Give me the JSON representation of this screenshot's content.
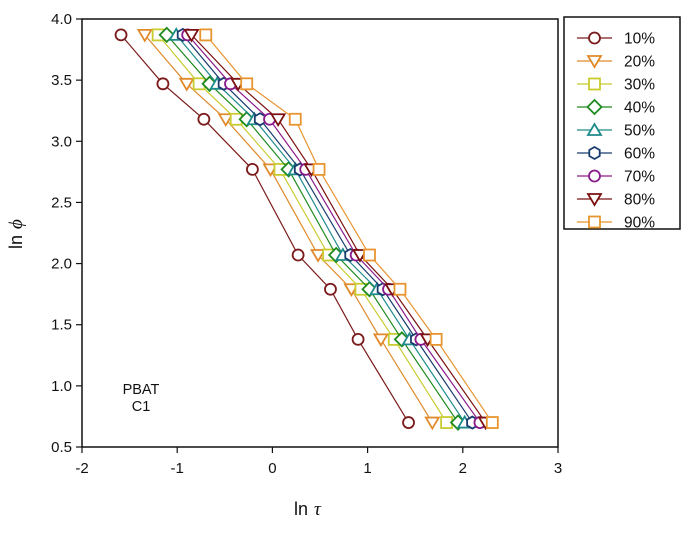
{
  "chart_data": {
    "type": "line",
    "title": "",
    "xlabel": "ln τ",
    "xlabel_parts": {
      "prefix": "ln",
      "symbol": "τ"
    },
    "ylabel": "ln ϕ",
    "ylabel_parts": {
      "prefix": "ln",
      "symbol": "ϕ"
    },
    "xlim": [
      -2,
      3
    ],
    "ylim": [
      0.5,
      4.0
    ],
    "xticks": [
      -2,
      -1,
      0,
      1,
      2,
      3
    ],
    "xtick_labels": [
      "-2",
      "-1",
      "0",
      "1",
      "2",
      "3"
    ],
    "yticks": [
      0.5,
      1.0,
      1.5,
      2.0,
      2.5,
      3.0,
      3.5,
      4.0
    ],
    "ytick_labels": [
      "0.5",
      "1.0",
      "1.5",
      "2.0",
      "2.5",
      "3.0",
      "3.5",
      "4.0"
    ],
    "grid": false,
    "legend_position": "outside-right-top",
    "annotation": [
      "PBAT",
      "C1"
    ],
    "y": [
      3.87,
      3.47,
      3.18,
      2.77,
      2.07,
      1.79,
      1.38,
      0.7
    ],
    "series": [
      {
        "name": "10%",
        "color": "#7B1A1A",
        "marker": "circle",
        "x": [
          -1.59,
          -1.15,
          -0.72,
          -0.21,
          0.27,
          0.61,
          0.9,
          1.43
        ]
      },
      {
        "name": "20%",
        "color": "#E08A2A",
        "marker": "triangle-down",
        "x": [
          -1.34,
          -0.9,
          -0.49,
          -0.02,
          0.48,
          0.83,
          1.14,
          1.68
        ]
      },
      {
        "name": "30%",
        "color": "#C8CC30",
        "marker": "square",
        "x": [
          -1.2,
          -0.77,
          -0.38,
          0.08,
          0.59,
          0.93,
          1.28,
          1.83
        ]
      },
      {
        "name": "40%",
        "color": "#1E8A1E",
        "marker": "diamond",
        "x": [
          -1.11,
          -0.66,
          -0.27,
          0.17,
          0.67,
          1.02,
          1.36,
          1.95
        ]
      },
      {
        "name": "50%",
        "color": "#1E8A8A",
        "marker": "triangle-up",
        "x": [
          -1.01,
          -0.58,
          -0.19,
          0.24,
          0.74,
          1.1,
          1.44,
          2.02
        ]
      },
      {
        "name": "60%",
        "color": "#1A3C6E",
        "marker": "hexagon",
        "x": [
          -0.94,
          -0.51,
          -0.13,
          0.29,
          0.82,
          1.16,
          1.51,
          2.1
        ]
      },
      {
        "name": "70%",
        "color": "#8A1A8A",
        "marker": "circle",
        "x": [
          -0.89,
          -0.44,
          -0.03,
          0.35,
          0.88,
          1.22,
          1.56,
          2.18
        ]
      },
      {
        "name": "80%",
        "color": "#7A1010",
        "marker": "triangle-down",
        "x": [
          -0.85,
          -0.36,
          0.06,
          0.41,
          0.92,
          1.26,
          1.63,
          2.24
        ]
      },
      {
        "name": "90%",
        "color": "#E89530",
        "marker": "square",
        "x": [
          -0.7,
          -0.27,
          0.24,
          0.49,
          1.02,
          1.34,
          1.72,
          2.31
        ]
      }
    ]
  }
}
